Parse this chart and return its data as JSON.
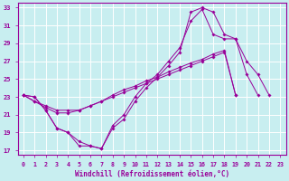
{
  "xlabel": "Windchill (Refroidissement éolien,°C)",
  "background_color": "#c8eef0",
  "line_color": "#990099",
  "xlim_min": -0.5,
  "xlim_max": 23.5,
  "ylim_min": 16.5,
  "ylim_max": 33.5,
  "yticks": [
    17,
    19,
    21,
    23,
    25,
    27,
    29,
    31,
    33
  ],
  "xticks": [
    0,
    1,
    2,
    3,
    4,
    5,
    6,
    7,
    8,
    9,
    10,
    11,
    12,
    13,
    14,
    15,
    16,
    17,
    18,
    19,
    20,
    21,
    22,
    23
  ],
  "grid_color": "#ffffff",
  "series": [
    {
      "x": [
        0,
        1,
        2,
        3,
        4,
        5,
        6,
        7,
        8,
        9,
        10,
        11,
        12,
        13,
        14,
        15,
        16,
        17,
        18,
        19,
        20,
        21,
        22
      ],
      "y": [
        23.2,
        23.0,
        21.5,
        19.5,
        19.0,
        17.5,
        17.5,
        17.2,
        19.5,
        20.5,
        22.5,
        24.0,
        25.2,
        26.5,
        28.0,
        32.5,
        33.0,
        32.5,
        30.0,
        29.5,
        27.0,
        25.5,
        23.2
      ]
    },
    {
      "x": [
        0,
        1,
        2,
        3,
        4,
        5,
        6,
        7,
        8,
        9,
        10,
        11,
        12,
        13,
        14,
        15,
        16,
        17,
        18,
        19,
        20,
        21,
        22
      ],
      "y": [
        23.2,
        23.0,
        21.5,
        19.5,
        19.0,
        18.0,
        17.5,
        17.2,
        19.8,
        21.0,
        23.0,
        24.5,
        25.5,
        27.0,
        28.5,
        31.5,
        32.8,
        30.0,
        29.5,
        29.5,
        25.5,
        23.2,
        null
      ]
    },
    {
      "x": [
        0,
        1,
        2,
        3,
        4,
        5,
        6,
        7,
        8,
        9,
        10,
        11,
        12,
        13,
        14,
        15,
        16,
        17,
        18,
        19,
        20,
        21,
        22
      ],
      "y": [
        23.2,
        22.5,
        22.0,
        21.5,
        21.5,
        21.5,
        22.0,
        22.5,
        23.2,
        23.8,
        24.2,
        24.8,
        25.2,
        25.8,
        26.3,
        26.8,
        27.2,
        27.8,
        28.2,
        23.2,
        null,
        null,
        null
      ]
    },
    {
      "x": [
        0,
        1,
        2,
        3,
        4,
        5,
        6,
        7,
        8,
        9,
        10,
        11,
        12,
        13,
        14,
        15,
        16,
        17,
        18,
        19,
        20,
        21,
        22
      ],
      "y": [
        23.2,
        22.5,
        21.8,
        21.2,
        21.2,
        21.5,
        22.0,
        22.5,
        23.0,
        23.5,
        24.0,
        24.5,
        25.0,
        25.5,
        26.0,
        26.5,
        27.0,
        27.5,
        28.0,
        23.2,
        null,
        null,
        null
      ]
    }
  ]
}
